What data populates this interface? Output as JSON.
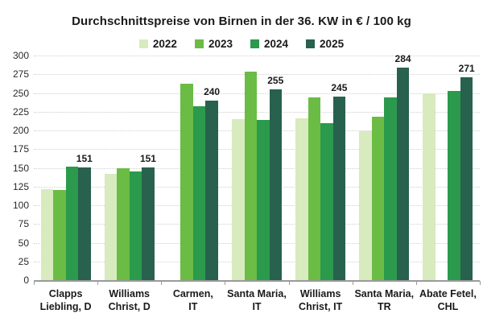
{
  "title": "Durchschnittspreise von Birnen in der 36. KW in € / 100 kg",
  "chart_data": {
    "type": "bar",
    "title": "Durchschnittspreise von Birnen in der 36. KW in € / 100 kg",
    "categories": [
      "Clapps Liebling, D",
      "Williams Christ, D",
      "Carmen, IT",
      "Santa Maria, IT",
      "Williams Christ, IT",
      "Santa Maria, TR",
      "Abate Fetel, CHL"
    ],
    "category_label_lines": [
      [
        "Clapps",
        "Liebling, D"
      ],
      [
        "Williams",
        "Christ, D"
      ],
      [
        "Carmen,",
        "IT"
      ],
      [
        "Santa Maria,",
        "IT"
      ],
      [
        "Williams",
        "Christ, IT"
      ],
      [
        "Santa Maria,",
        "TR"
      ],
      [
        "Abate Fetel,",
        "CHL"
      ]
    ],
    "series": [
      {
        "name": "2022",
        "color": "#d7ebbe",
        "values": [
          122,
          142,
          null,
          215,
          216,
          199,
          250
        ],
        "show_labels": false
      },
      {
        "name": "2023",
        "color": "#6abc45",
        "values": [
          120,
          149,
          262,
          278,
          244,
          218,
          null
        ],
        "show_labels": false
      },
      {
        "name": "2024",
        "color": "#2b9a4c",
        "values": [
          152,
          145,
          232,
          214,
          210,
          244,
          253
        ],
        "show_labels": false
      },
      {
        "name": "2025",
        "color": "#28614e",
        "values": [
          151,
          151,
          240,
          255,
          245,
          284,
          271
        ],
        "show_labels": true
      }
    ],
    "data_labels_2025": [
      151,
      151,
      240,
      255,
      245,
      284,
      271
    ],
    "xlabel": "",
    "ylabel": "",
    "ylim": [
      0,
      300
    ],
    "ytick_step": 25,
    "yticks": [
      0,
      25,
      50,
      75,
      100,
      125,
      150,
      175,
      200,
      225,
      250,
      275,
      300
    ],
    "grid": "horizontal-dotted",
    "legend_position": "top-center",
    "axis_color": "#9a9a9a",
    "gridline_color": "#cfcfcf",
    "text_color": "#1a1a1a"
  }
}
